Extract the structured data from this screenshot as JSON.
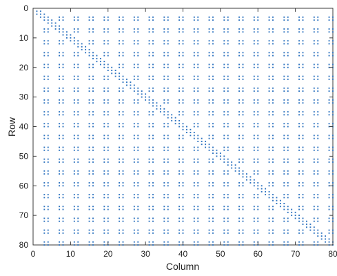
{
  "chart_data": {
    "type": "scatter",
    "title": "",
    "xlabel": "Column",
    "ylabel": "Row",
    "xlim": [
      0,
      80
    ],
    "ylim": [
      80,
      0
    ],
    "y_axis_reversed": true,
    "x_ticks": [
      0,
      10,
      20,
      30,
      40,
      50,
      60,
      70,
      80
    ],
    "y_ticks": [
      0,
      10,
      20,
      30,
      40,
      50,
      60,
      70,
      80
    ],
    "grid": false,
    "marker_color": "#2f74c0",
    "pattern": {
      "description": "sparsity pattern; off-diagonal blocks at every 4th row/column",
      "block_size": 2,
      "block_positions": [
        3,
        7,
        11,
        15,
        19,
        23,
        27,
        31,
        35,
        39,
        43,
        47,
        51,
        55,
        59,
        63,
        67,
        71,
        75,
        79
      ],
      "diagonal_band": "tridiagonal on rows/cols 1-80"
    },
    "series": [
      {
        "name": "",
        "points_generated_from": "pattern"
      }
    ]
  }
}
